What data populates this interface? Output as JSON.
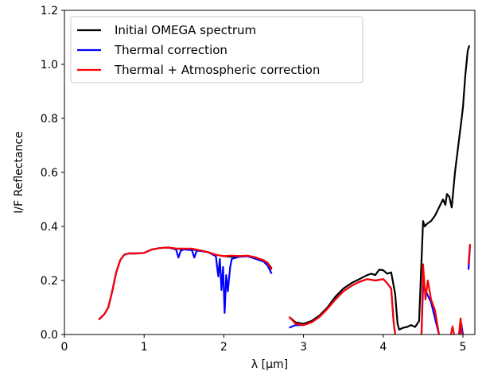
{
  "chart_data": {
    "type": "line",
    "xlabel": "λ [µm]",
    "ylabel": "I/F Reflectance",
    "xlim": [
      0,
      5.15
    ],
    "ylim": [
      0,
      1.2
    ],
    "xticks": [
      0,
      1,
      2,
      3,
      4,
      5
    ],
    "xtick_labels": [
      "0",
      "1",
      "2",
      "3",
      "4",
      "5"
    ],
    "yticks": [
      0.0,
      0.2,
      0.4,
      0.6,
      0.8,
      1.0,
      1.2
    ],
    "ytick_labels": [
      "0.0",
      "0.2",
      "0.4",
      "0.6",
      "0.8",
      "1.0",
      "1.2"
    ],
    "legend_position": "top-left",
    "grid": false,
    "series": [
      {
        "name": "Initial OMEGA spectrum",
        "color": "#000000",
        "segments": [
          [
            [
              0.43,
              0.055
            ],
            [
              0.5,
              0.075
            ],
            [
              0.55,
              0.1
            ],
            [
              0.6,
              0.16
            ],
            [
              0.65,
              0.23
            ],
            [
              0.7,
              0.275
            ],
            [
              0.75,
              0.295
            ],
            [
              0.8,
              0.3
            ],
            [
              0.9,
              0.3
            ],
            [
              1.0,
              0.302
            ],
            [
              1.1,
              0.315
            ],
            [
              1.2,
              0.32
            ],
            [
              1.3,
              0.322
            ],
            [
              1.4,
              0.318
            ],
            [
              1.5,
              0.315
            ],
            [
              1.6,
              0.315
            ],
            [
              1.7,
              0.31
            ],
            [
              1.8,
              0.305
            ],
            [
              1.9,
              0.295
            ],
            [
              2.0,
              0.29
            ],
            [
              2.1,
              0.288
            ],
            [
              2.2,
              0.29
            ],
            [
              2.3,
              0.29
            ],
            [
              2.4,
              0.283
            ],
            [
              2.5,
              0.275
            ],
            [
              2.55,
              0.265
            ],
            [
              2.6,
              0.245
            ]
          ],
          [
            [
              2.82,
              0.065
            ],
            [
              2.9,
              0.045
            ],
            [
              3.0,
              0.04
            ],
            [
              3.1,
              0.05
            ],
            [
              3.2,
              0.07
            ],
            [
              3.3,
              0.1
            ],
            [
              3.4,
              0.14
            ],
            [
              3.5,
              0.17
            ],
            [
              3.6,
              0.19
            ],
            [
              3.7,
              0.205
            ],
            [
              3.8,
              0.22
            ],
            [
              3.85,
              0.225
            ],
            [
              3.9,
              0.22
            ],
            [
              3.95,
              0.24
            ],
            [
              4.0,
              0.238
            ],
            [
              4.05,
              0.225
            ],
            [
              4.1,
              0.23
            ],
            [
              4.15,
              0.15
            ],
            [
              4.18,
              0.04
            ],
            [
              4.2,
              0.018
            ],
            [
              4.25,
              0.025
            ],
            [
              4.3,
              0.028
            ],
            [
              4.35,
              0.035
            ],
            [
              4.4,
              0.028
            ],
            [
              4.45,
              0.05
            ],
            [
              4.5,
              0.42
            ],
            [
              4.52,
              0.4
            ],
            [
              4.55,
              0.41
            ],
            [
              4.6,
              0.42
            ],
            [
              4.65,
              0.44
            ],
            [
              4.7,
              0.47
            ],
            [
              4.75,
              0.5
            ],
            [
              4.78,
              0.48
            ],
            [
              4.8,
              0.52
            ],
            [
              4.83,
              0.51
            ],
            [
              4.86,
              0.47
            ],
            [
              4.9,
              0.6
            ],
            [
              4.95,
              0.72
            ],
            [
              4.98,
              0.79
            ],
            [
              5.0,
              0.84
            ],
            [
              5.03,
              0.96
            ],
            [
              5.06,
              1.05
            ],
            [
              5.08,
              1.07
            ]
          ]
        ]
      },
      {
        "name": "Thermal correction",
        "color": "#0000ff",
        "segments": [
          [
            [
              0.43,
              0.055
            ],
            [
              0.5,
              0.075
            ],
            [
              0.55,
              0.1
            ],
            [
              0.6,
              0.16
            ],
            [
              0.65,
              0.23
            ],
            [
              0.7,
              0.275
            ],
            [
              0.75,
              0.295
            ],
            [
              0.8,
              0.3
            ],
            [
              0.9,
              0.3
            ],
            [
              1.0,
              0.302
            ],
            [
              1.1,
              0.315
            ],
            [
              1.2,
              0.32
            ],
            [
              1.3,
              0.322
            ],
            [
              1.4,
              0.315
            ],
            [
              1.43,
              0.285
            ],
            [
              1.46,
              0.31
            ],
            [
              1.5,
              0.315
            ],
            [
              1.6,
              0.312
            ],
            [
              1.63,
              0.285
            ],
            [
              1.66,
              0.31
            ],
            [
              1.7,
              0.31
            ],
            [
              1.8,
              0.305
            ],
            [
              1.9,
              0.29
            ],
            [
              1.93,
              0.215
            ],
            [
              1.95,
              0.28
            ],
            [
              1.97,
              0.165
            ],
            [
              1.99,
              0.25
            ],
            [
              2.01,
              0.08
            ],
            [
              2.03,
              0.22
            ],
            [
              2.05,
              0.16
            ],
            [
              2.08,
              0.25
            ],
            [
              2.1,
              0.28
            ],
            [
              2.2,
              0.288
            ],
            [
              2.3,
              0.29
            ],
            [
              2.4,
              0.28
            ],
            [
              2.5,
              0.27
            ],
            [
              2.55,
              0.255
            ],
            [
              2.6,
              0.225
            ]
          ],
          [
            [
              2.82,
              0.025
            ],
            [
              2.9,
              0.035
            ],
            [
              3.0,
              0.035
            ],
            [
              3.1,
              0.045
            ],
            [
              3.2,
              0.065
            ],
            [
              3.3,
              0.095
            ],
            [
              3.4,
              0.13
            ],
            [
              3.5,
              0.16
            ],
            [
              3.6,
              0.18
            ],
            [
              3.7,
              0.195
            ],
            [
              3.8,
              0.205
            ],
            [
              3.9,
              0.2
            ],
            [
              4.0,
              0.205
            ],
            [
              4.05,
              0.19
            ],
            [
              4.1,
              0.17
            ],
            [
              4.13,
              0.05
            ],
            [
              4.15,
              0.0
            ]
          ],
          [
            [
              4.48,
              0.0
            ],
            [
              4.5,
              0.18
            ],
            [
              4.55,
              0.15
            ],
            [
              4.6,
              0.12
            ],
            [
              4.65,
              0.06
            ],
            [
              4.7,
              0.0
            ]
          ],
          [
            [
              4.85,
              0.0
            ],
            [
              4.87,
              0.0
            ]
          ],
          [
            [
              4.96,
              0.0
            ],
            [
              4.98,
              0.04
            ],
            [
              5.0,
              0.0
            ]
          ],
          [
            [
              5.07,
              0.24
            ],
            [
              5.09,
              0.33
            ]
          ]
        ]
      },
      {
        "name": "Thermal + Atmospheric correction",
        "color": "#ff0000",
        "segments": [
          [
            [
              0.43,
              0.055
            ],
            [
              0.5,
              0.075
            ],
            [
              0.55,
              0.1
            ],
            [
              0.6,
              0.16
            ],
            [
              0.65,
              0.23
            ],
            [
              0.7,
              0.275
            ],
            [
              0.75,
              0.295
            ],
            [
              0.8,
              0.3
            ],
            [
              0.9,
              0.3
            ],
            [
              1.0,
              0.302
            ],
            [
              1.1,
              0.315
            ],
            [
              1.2,
              0.32
            ],
            [
              1.3,
              0.322
            ],
            [
              1.4,
              0.318
            ],
            [
              1.5,
              0.318
            ],
            [
              1.6,
              0.318
            ],
            [
              1.7,
              0.312
            ],
            [
              1.8,
              0.305
            ],
            [
              1.9,
              0.295
            ],
            [
              2.0,
              0.29
            ],
            [
              2.1,
              0.292
            ],
            [
              2.2,
              0.29
            ],
            [
              2.3,
              0.292
            ],
            [
              2.4,
              0.285
            ],
            [
              2.5,
              0.275
            ],
            [
              2.55,
              0.265
            ],
            [
              2.6,
              0.24
            ]
          ],
          [
            [
              2.82,
              0.065
            ],
            [
              2.9,
              0.04
            ],
            [
              3.0,
              0.035
            ],
            [
              3.1,
              0.045
            ],
            [
              3.2,
              0.065
            ],
            [
              3.3,
              0.095
            ],
            [
              3.4,
              0.13
            ],
            [
              3.5,
              0.16
            ],
            [
              3.6,
              0.18
            ],
            [
              3.7,
              0.195
            ],
            [
              3.8,
              0.205
            ],
            [
              3.9,
              0.2
            ],
            [
              4.0,
              0.205
            ],
            [
              4.05,
              0.19
            ],
            [
              4.1,
              0.17
            ],
            [
              4.13,
              0.05
            ],
            [
              4.15,
              0.0
            ]
          ],
          [
            [
              4.48,
              0.0
            ],
            [
              4.5,
              0.26
            ],
            [
              4.53,
              0.13
            ],
            [
              4.56,
              0.2
            ],
            [
              4.6,
              0.13
            ],
            [
              4.65,
              0.09
            ],
            [
              4.7,
              0.0
            ]
          ],
          [
            [
              4.85,
              0.0
            ],
            [
              4.87,
              0.03
            ],
            [
              4.89,
              0.0
            ]
          ],
          [
            [
              4.95,
              0.0
            ],
            [
              4.97,
              0.06
            ],
            [
              4.99,
              0.0
            ]
          ],
          [
            [
              5.07,
              0.26
            ],
            [
              5.09,
              0.335
            ]
          ]
        ]
      }
    ]
  }
}
